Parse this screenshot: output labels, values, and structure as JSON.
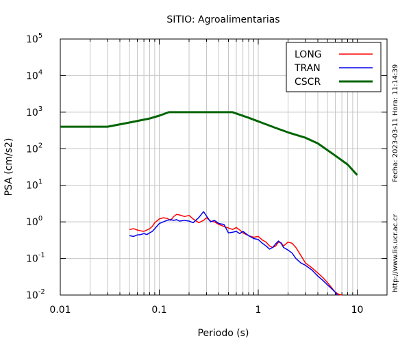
{
  "chart_data": {
    "type": "line",
    "title": "SITIO: Agroalimentarias",
    "xlabel": "Periodo (s)",
    "ylabel": "PSA (cm/s2)",
    "xscale": "log",
    "yscale": "log",
    "xlim": [
      0.01,
      20
    ],
    "ylim": [
      0.01,
      100000
    ],
    "grid": true,
    "legend_position": "top-right",
    "x_ticks": [
      {
        "value": 0.01,
        "label": "0.01"
      },
      {
        "value": 0.1,
        "label": "0.1"
      },
      {
        "value": 1,
        "label": "1"
      },
      {
        "value": 10,
        "label": "10"
      }
    ],
    "y_ticks": [
      {
        "value": 0.01,
        "base": "10",
        "exp": "-2"
      },
      {
        "value": 0.1,
        "base": "10",
        "exp": "-1"
      },
      {
        "value": 1,
        "base": "10",
        "exp": "0"
      },
      {
        "value": 10,
        "base": "10",
        "exp": "1"
      },
      {
        "value": 100,
        "base": "10",
        "exp": "2"
      },
      {
        "value": 1000,
        "base": "10",
        "exp": "3"
      },
      {
        "value": 10000,
        "base": "10",
        "exp": "4"
      },
      {
        "value": 100000,
        "base": "10",
        "exp": "5"
      }
    ],
    "side_text_top": "Fecha: 2023-03-11  Hora: 11:14:39",
    "side_text_bottom": "http://www.lis.ucr.ac.cr",
    "series": [
      {
        "name": "LONG",
        "color": "#ff0000",
        "x": [
          0.05,
          0.055,
          0.06,
          0.065,
          0.07,
          0.075,
          0.08,
          0.085,
          0.09,
          0.1,
          0.11,
          0.12,
          0.13,
          0.14,
          0.15,
          0.16,
          0.18,
          0.2,
          0.22,
          0.25,
          0.28,
          0.3,
          0.33,
          0.36,
          0.4,
          0.45,
          0.5,
          0.55,
          0.6,
          0.65,
          0.7,
          0.8,
          0.9,
          1.0,
          1.1,
          1.2,
          1.3,
          1.4,
          1.5,
          1.6,
          1.7,
          1.8,
          2.0,
          2.2,
          2.4,
          2.7,
          3.0,
          3.5,
          4.0,
          4.5,
          5.0,
          5.5,
          6.0,
          6.5,
          7.0
        ],
        "y": [
          0.62,
          0.65,
          0.6,
          0.57,
          0.55,
          0.6,
          0.65,
          0.75,
          0.95,
          1.2,
          1.3,
          1.25,
          1.1,
          1.4,
          1.6,
          1.55,
          1.4,
          1.5,
          1.2,
          0.95,
          1.1,
          1.3,
          1.05,
          1.0,
          0.85,
          0.75,
          0.68,
          0.62,
          0.7,
          0.6,
          0.5,
          0.42,
          0.38,
          0.4,
          0.32,
          0.28,
          0.22,
          0.2,
          0.22,
          0.28,
          0.27,
          0.22,
          0.28,
          0.26,
          0.2,
          0.12,
          0.075,
          0.055,
          0.04,
          0.03,
          0.022,
          0.016,
          0.012,
          0.0105,
          0.01
        ]
      },
      {
        "name": "TRAN",
        "color": "#0000ee",
        "x": [
          0.05,
          0.055,
          0.06,
          0.065,
          0.07,
          0.075,
          0.08,
          0.085,
          0.09,
          0.1,
          0.11,
          0.12,
          0.13,
          0.14,
          0.15,
          0.16,
          0.18,
          0.2,
          0.22,
          0.25,
          0.28,
          0.3,
          0.33,
          0.36,
          0.4,
          0.45,
          0.5,
          0.55,
          0.6,
          0.65,
          0.7,
          0.8,
          0.9,
          1.0,
          1.1,
          1.2,
          1.3,
          1.4,
          1.5,
          1.6,
          1.7,
          1.8,
          2.0,
          2.2,
          2.4,
          2.7,
          3.0,
          3.5,
          4.0,
          4.5,
          5.0,
          5.5,
          6.0,
          6.3
        ],
        "y": [
          0.42,
          0.4,
          0.44,
          0.45,
          0.48,
          0.45,
          0.5,
          0.55,
          0.65,
          0.9,
          1.0,
          1.1,
          1.15,
          1.1,
          1.15,
          1.05,
          1.1,
          1.05,
          0.95,
          1.3,
          1.9,
          1.45,
          1.0,
          1.1,
          0.9,
          0.85,
          0.5,
          0.52,
          0.55,
          0.48,
          0.55,
          0.42,
          0.35,
          0.33,
          0.26,
          0.22,
          0.18,
          0.2,
          0.25,
          0.3,
          0.26,
          0.2,
          0.17,
          0.14,
          0.1,
          0.075,
          0.065,
          0.048,
          0.033,
          0.025,
          0.019,
          0.015,
          0.012,
          0.01
        ]
      },
      {
        "name": "CSCR",
        "color": "#006400",
        "x": [
          0.01,
          0.03,
          0.05,
          0.08,
          0.1,
          0.125,
          0.2,
          0.4,
          0.55,
          0.8,
          1.0,
          1.5,
          2.0,
          3.0,
          4.0,
          6.0,
          8.0,
          10.0
        ],
        "y": [
          400,
          400,
          520,
          670,
          800,
          1000,
          1000,
          1000,
          1000,
          700,
          560,
          370,
          280,
          200,
          140,
          65,
          37,
          19
        ]
      }
    ]
  }
}
